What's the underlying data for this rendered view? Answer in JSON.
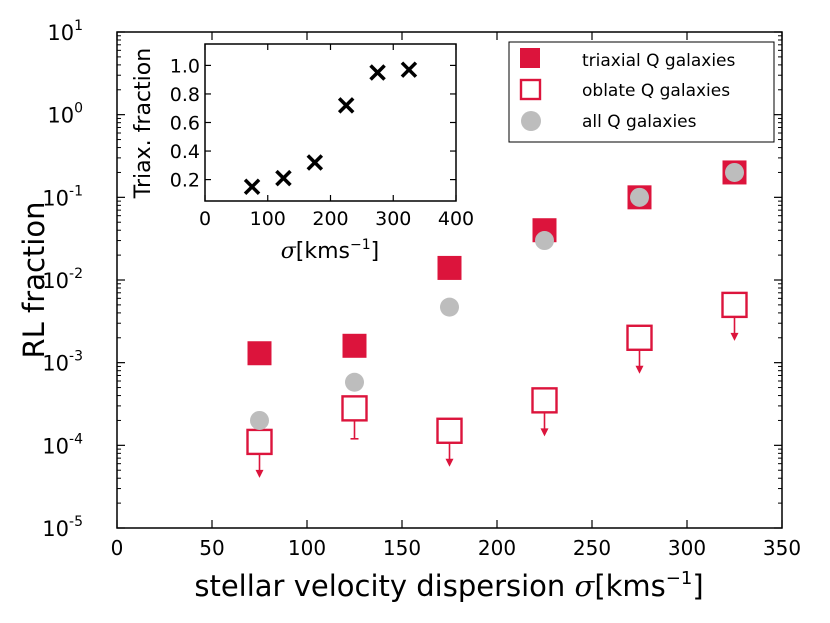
{
  "chart_data": [
    {
      "type": "scatter",
      "xlabel": "stellar velocity dispersion",
      "xlabel_symbol": "σ",
      "xlabel_unit": "[kms",
      "xlabel_unit_exp": "−1",
      "xlabel_unit_close": "]",
      "ylabel": "RL fraction",
      "xlim": [
        0,
        350
      ],
      "ylim": [
        1e-05,
        10
      ],
      "yscale": "log",
      "x_ticks": [
        "0",
        "50",
        "100",
        "150",
        "200",
        "250",
        "300",
        "350"
      ],
      "y_ticks": [
        {
          "base": "10",
          "exp": "1"
        },
        {
          "base": "10",
          "exp": "0"
        },
        {
          "base": "10",
          "exp": "-1"
        },
        {
          "base": "10",
          "exp": "-2"
        },
        {
          "base": "10",
          "exp": "-3"
        },
        {
          "base": "10",
          "exp": "-4"
        },
        {
          "base": "10",
          "exp": "-5"
        }
      ],
      "legend_position": "top-right",
      "series": [
        {
          "name": "triaxial Q galaxies",
          "marker": "filled-square",
          "color": "#dc143c",
          "x": [
            75,
            125,
            175,
            225,
            275,
            325
          ],
          "y": [
            0.0013,
            0.0016,
            0.014,
            0.04,
            0.1,
            0.2
          ]
        },
        {
          "name": "oblate Q galaxies",
          "marker": "open-square",
          "color": "#dc143c",
          "x": [
            75,
            125,
            175,
            225,
            275,
            325
          ],
          "y": [
            0.00011,
            0.00028,
            0.00015,
            0.00035,
            0.002,
            0.005
          ],
          "upper_limit": [
            true,
            false,
            true,
            true,
            true,
            true
          ],
          "error_lower": [
            null,
            0.00012,
            null,
            null,
            null,
            null
          ]
        },
        {
          "name": "all Q galaxies",
          "marker": "circle",
          "color": "#bdbdbd",
          "x": [
            75,
            125,
            175,
            225,
            275,
            325
          ],
          "y": [
            0.0002,
            0.00058,
            0.0047,
            0.03,
            0.1,
            0.2
          ]
        }
      ]
    },
    {
      "type": "scatter",
      "inset": true,
      "xlabel_symbol": "σ",
      "xlabel_unit": "[kms",
      "xlabel_unit_exp": "−1",
      "xlabel_unit_close": "]",
      "ylabel": "Triax. fraction",
      "xlim": [
        0,
        400
      ],
      "ylim": [
        0.05,
        1.15
      ],
      "x_ticks": [
        "0",
        "100",
        "200",
        "300",
        "400"
      ],
      "y_ticks": [
        "0.2",
        "0.4",
        "0.6",
        "0.8",
        "1.0"
      ],
      "series": [
        {
          "marker": "x",
          "color": "#000000",
          "x": [
            75,
            125,
            175,
            225,
            275,
            325
          ],
          "y": [
            0.15,
            0.21,
            0.32,
            0.72,
            0.95,
            0.97
          ]
        }
      ]
    }
  ]
}
